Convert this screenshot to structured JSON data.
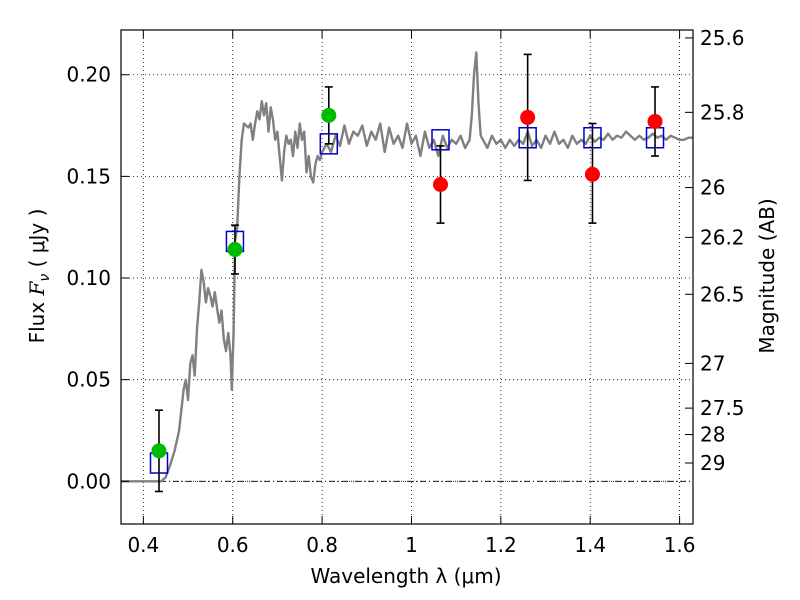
{
  "chart_data": {
    "type": "scatter",
    "xlabel": "Wavelength  λ (μm)",
    "ylabel": "Flux  Fν  ( μJy )",
    "y2label": "Magnitude (AB)",
    "xlim": [
      0.35,
      1.63
    ],
    "ylim": [
      -0.021,
      0.222
    ],
    "grid": true,
    "x_ticks": [
      0.4,
      0.6,
      0.8,
      1.0,
      1.2,
      1.4,
      1.6
    ],
    "x_tick_labels": [
      "0.4",
      "0.6",
      "0.8",
      "1",
      "1.2",
      "1.4",
      "1.6"
    ],
    "y_ticks": [
      0.0,
      0.05,
      0.1,
      0.15,
      0.2
    ],
    "y_tick_labels": [
      "0.00",
      "0.05",
      "0.10",
      "0.15",
      "0.20"
    ],
    "mag_ticks": [
      {
        "value": 0.2181,
        "label": "25.6"
      },
      {
        "value": 0.1815,
        "label": "25.8"
      },
      {
        "value": 0.1445,
        "label": "26"
      },
      {
        "value": 0.12,
        "label": "26.2"
      },
      {
        "value": 0.092,
        "label": "26.5"
      },
      {
        "value": 0.058,
        "label": "27"
      },
      {
        "value": 0.036,
        "label": "27.5"
      },
      {
        "value": 0.023,
        "label": "28"
      },
      {
        "value": 0.009,
        "label": "29"
      }
    ],
    "series": [
      {
        "kind": "model_spectrum",
        "color": "#808080",
        "x": [
          0.35,
          0.44,
          0.45,
          0.46,
          0.47,
          0.48,
          0.49,
          0.495,
          0.5,
          0.505,
          0.51,
          0.515,
          0.52,
          0.525,
          0.53,
          0.535,
          0.54,
          0.545,
          0.55,
          0.555,
          0.56,
          0.565,
          0.57,
          0.575,
          0.58,
          0.585,
          0.59,
          0.595,
          0.598,
          0.6,
          0.602,
          0.605,
          0.61,
          0.615,
          0.62,
          0.625,
          0.63,
          0.635,
          0.64,
          0.645,
          0.65,
          0.655,
          0.66,
          0.665,
          0.67,
          0.675,
          0.68,
          0.685,
          0.69,
          0.695,
          0.7,
          0.705,
          0.71,
          0.715,
          0.72,
          0.725,
          0.73,
          0.735,
          0.74,
          0.745,
          0.75,
          0.755,
          0.76,
          0.765,
          0.77,
          0.775,
          0.78,
          0.785,
          0.79,
          0.795,
          0.8,
          0.81,
          0.82,
          0.83,
          0.84,
          0.85,
          0.86,
          0.87,
          0.88,
          0.89,
          0.9,
          0.91,
          0.92,
          0.93,
          0.94,
          0.95,
          0.96,
          0.97,
          0.98,
          0.99,
          1.0,
          1.01,
          1.02,
          1.03,
          1.04,
          1.05,
          1.06,
          1.07,
          1.08,
          1.09,
          1.1,
          1.11,
          1.12,
          1.13,
          1.135,
          1.14,
          1.145,
          1.15,
          1.155,
          1.16,
          1.17,
          1.18,
          1.19,
          1.2,
          1.21,
          1.22,
          1.23,
          1.24,
          1.25,
          1.26,
          1.27,
          1.28,
          1.29,
          1.3,
          1.31,
          1.32,
          1.33,
          1.34,
          1.35,
          1.36,
          1.37,
          1.38,
          1.39,
          1.4,
          1.41,
          1.42,
          1.43,
          1.44,
          1.45,
          1.46,
          1.47,
          1.48,
          1.49,
          1.5,
          1.51,
          1.52,
          1.53,
          1.54,
          1.55,
          1.56,
          1.57,
          1.58,
          1.59,
          1.6,
          1.61,
          1.62,
          1.63
        ],
        "y": [
          0.0,
          0.0,
          0.002,
          0.008,
          0.015,
          0.025,
          0.045,
          0.05,
          0.04,
          0.058,
          0.062,
          0.052,
          0.075,
          0.088,
          0.104,
          0.098,
          0.088,
          0.095,
          0.091,
          0.086,
          0.093,
          0.085,
          0.078,
          0.084,
          0.07,
          0.064,
          0.073,
          0.062,
          0.045,
          0.06,
          0.073,
          0.118,
          0.125,
          0.15,
          0.168,
          0.176,
          0.175,
          0.174,
          0.176,
          0.168,
          0.176,
          0.182,
          0.178,
          0.187,
          0.18,
          0.186,
          0.172,
          0.184,
          0.178,
          0.168,
          0.172,
          0.16,
          0.148,
          0.162,
          0.17,
          0.166,
          0.168,
          0.16,
          0.172,
          0.164,
          0.176,
          0.168,
          0.172,
          0.152,
          0.16,
          0.15,
          0.147,
          0.156,
          0.16,
          0.158,
          0.162,
          0.166,
          0.162,
          0.17,
          0.165,
          0.175,
          0.166,
          0.172,
          0.17,
          0.175,
          0.165,
          0.172,
          0.168,
          0.176,
          0.162,
          0.174,
          0.166,
          0.17,
          0.164,
          0.176,
          0.166,
          0.17,
          0.16,
          0.172,
          0.164,
          0.168,
          0.16,
          0.17,
          0.164,
          0.168,
          0.166,
          0.17,
          0.164,
          0.168,
          0.18,
          0.2,
          0.211,
          0.186,
          0.17,
          0.168,
          0.164,
          0.17,
          0.166,
          0.168,
          0.164,
          0.168,
          0.165,
          0.168,
          0.166,
          0.172,
          0.165,
          0.168,
          0.164,
          0.17,
          0.166,
          0.172,
          0.166,
          0.168,
          0.164,
          0.17,
          0.166,
          0.168,
          0.166,
          0.17,
          0.167,
          0.169,
          0.168,
          0.171,
          0.168,
          0.17,
          0.169,
          0.172,
          0.17,
          0.168,
          0.17,
          0.168,
          0.169,
          0.171,
          0.169,
          0.17,
          0.168,
          0.17,
          0.169,
          0.168,
          0.168,
          0.169,
          0.169
        ]
      },
      {
        "kind": "model_points",
        "color": "#0000cc",
        "marker": "open-square",
        "x": [
          0.435,
          0.605,
          0.815,
          1.065,
          1.26,
          1.405,
          1.545
        ],
        "y": [
          0.009,
          0.118,
          0.166,
          0.168,
          0.169,
          0.169,
          0.169
        ]
      },
      {
        "kind": "observed_points",
        "color": "#00bb00",
        "marker": "filled-circle",
        "x": [
          0.435,
          0.605,
          0.815
        ],
        "y": [
          0.015,
          0.114,
          0.18
        ],
        "yerr": [
          0.02,
          0.012,
          0.014
        ]
      },
      {
        "kind": "observed_points",
        "color": "#ff0000",
        "marker": "filled-circle",
        "x": [
          1.065,
          1.26,
          1.405,
          1.545
        ],
        "y": [
          0.146,
          0.179,
          0.151,
          0.177
        ],
        "yerr_low": [
          0.019,
          0.031,
          0.024,
          0.017
        ],
        "yerr_high": [
          0.019,
          0.031,
          0.025,
          0.017
        ]
      }
    ]
  }
}
